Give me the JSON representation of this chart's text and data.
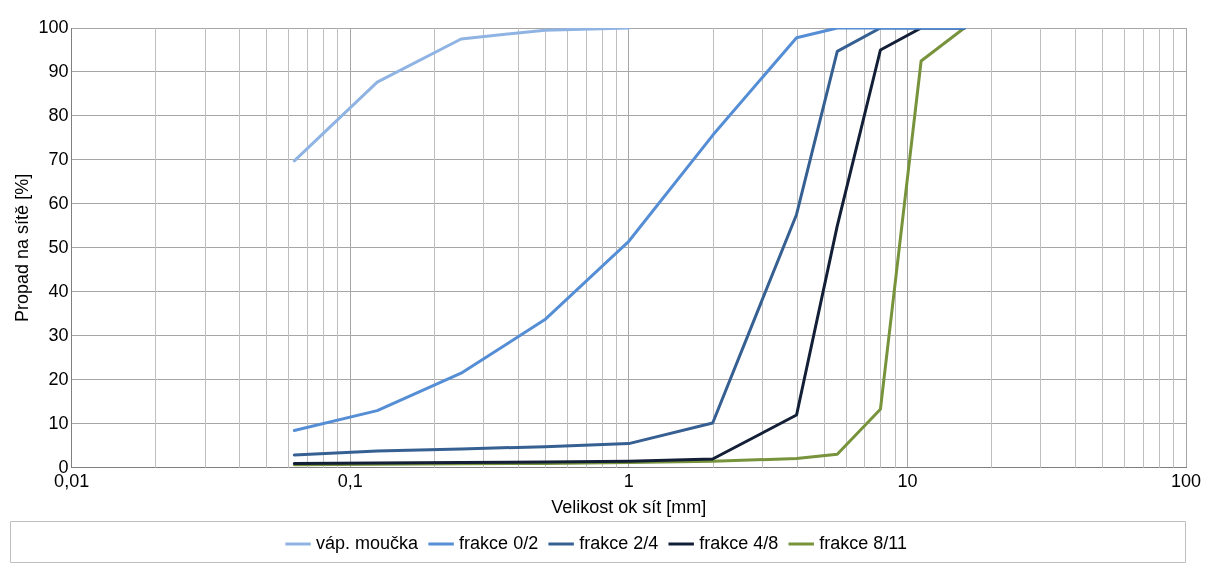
{
  "chart_data": {
    "type": "line",
    "xlabel": "Velikost ok sít [mm]",
    "ylabel": "Propad na sítě [%]",
    "xlim": [
      0.01,
      100
    ],
    "xticks": [
      {
        "value": 0.01,
        "label": "0,01"
      },
      {
        "value": 0.1,
        "label": "0,1"
      },
      {
        "value": 1,
        "label": "1"
      },
      {
        "value": 10,
        "label": "10"
      },
      {
        "value": 100,
        "label": "100"
      }
    ],
    "ylim": [
      0,
      100
    ],
    "yticks": [
      0,
      10,
      20,
      30,
      40,
      50,
      60,
      70,
      80,
      90,
      100
    ],
    "log": "x",
    "grid": true,
    "legend": "bottom",
    "marker": "none",
    "line_style": "solid",
    "series": [
      {
        "name": "váp. moučka",
        "color": "#8fb4e3",
        "x": [
          0.063,
          0.125,
          0.25,
          0.5,
          1
        ],
        "values": [
          69.8,
          87.7,
          97.5,
          99.5,
          100
        ]
      },
      {
        "name": "frakce 0/2",
        "color": "#558ed5",
        "x": [
          0.063,
          0.125,
          0.25,
          0.5,
          1,
          2,
          4,
          5.6,
          8,
          11.2,
          16
        ],
        "values": [
          8.5,
          13,
          21.5,
          33.7,
          51.5,
          75.6,
          97.8,
          100,
          100,
          100,
          100
        ]
      },
      {
        "name": "frakce 2/4",
        "color": "#376092",
        "x": [
          0.063,
          0.125,
          0.25,
          0.5,
          1,
          2,
          4,
          5.6,
          8,
          11.2,
          16
        ],
        "values": [
          2.9,
          3.8,
          4.3,
          4.8,
          5.5,
          10.2,
          57.6,
          94.7,
          100,
          100,
          100
        ]
      },
      {
        "name": "frakce 4/8",
        "color": "#131f36",
        "x": [
          0.063,
          0.125,
          0.25,
          0.5,
          1,
          2,
          4,
          5.6,
          8,
          11.2,
          16
        ],
        "values": [
          1,
          1.1,
          1.2,
          1.3,
          1.5,
          2,
          12,
          55,
          95,
          100,
          100
        ]
      },
      {
        "name": "frakce 8/11",
        "color": "#77933c",
        "x": [
          0.063,
          0.125,
          0.25,
          0.5,
          1,
          2,
          4,
          5.6,
          8,
          11.2,
          16
        ],
        "values": [
          0.7,
          0.8,
          0.9,
          1,
          1.2,
          1.5,
          2.1,
          3.1,
          13.3,
          92.5,
          100
        ]
      }
    ]
  }
}
